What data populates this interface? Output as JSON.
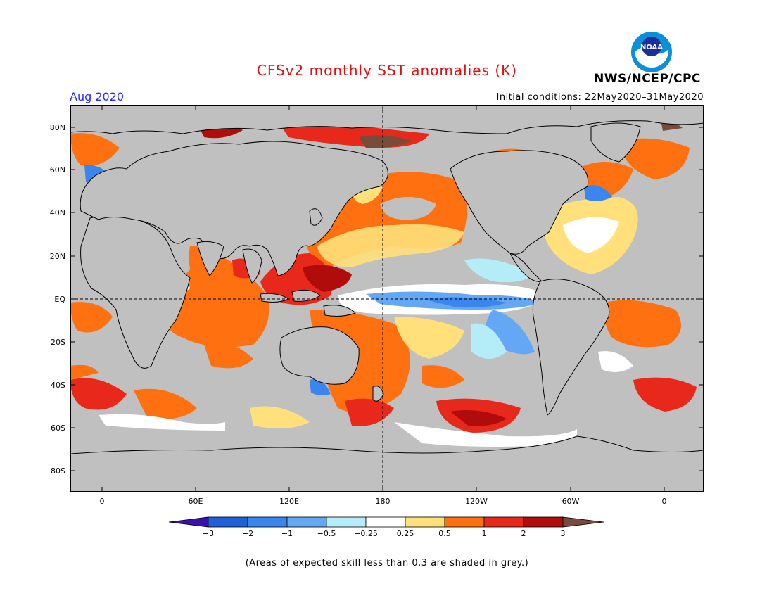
{
  "header": {
    "title": "CFSv2 monthly SST anomalies (K)",
    "month": "Aug 2020",
    "initial_conditions": "Initial conditions: 22May2020–31May2020",
    "agency": "NWS/NCEP/CPC",
    "logo_text": "NOAA"
  },
  "map": {
    "lat_labels": [
      "80N",
      "60N",
      "40N",
      "20N",
      "EQ",
      "20S",
      "40S",
      "60S",
      "80S"
    ],
    "lon_labels": [
      "0",
      "60E",
      "120E",
      "180",
      "120W",
      "60W",
      "0"
    ],
    "colors": {
      "land": "#c0c0c0",
      "grey_low_skill": "#c0c0c0",
      "frame": "#000000"
    }
  },
  "colorbar": {
    "labels": [
      "−3",
      "−2",
      "−1",
      "−0.5",
      "−0.25",
      "0.25",
      "0.5",
      "1",
      "2",
      "3"
    ],
    "colors": [
      "#3a10b0",
      "#1f60d8",
      "#3a86ee",
      "#64a8f5",
      "#b4ecf7",
      "#ffffff",
      "#ffe07a",
      "#ff7010",
      "#e8281a",
      "#b00c0c",
      "#7a4a3a"
    ]
  },
  "footnote": "(Areas of expected skill less than 0.3 are shaded in grey.)"
}
